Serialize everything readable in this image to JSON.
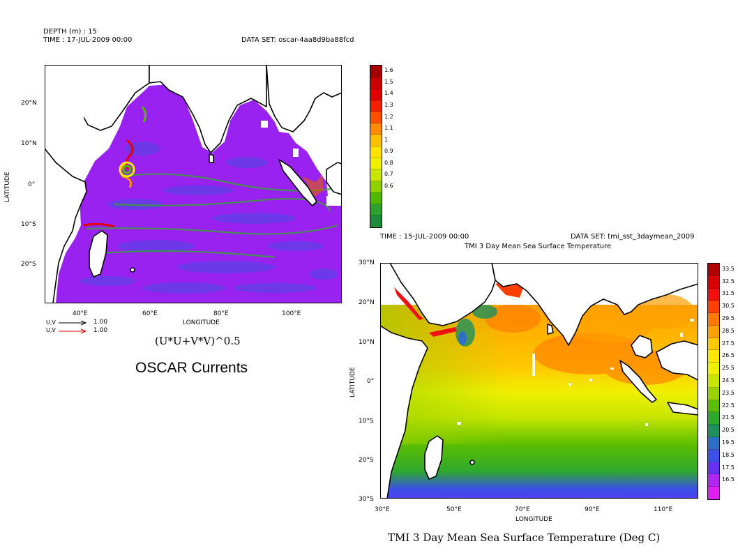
{
  "oscar": {
    "header": {
      "depth": "DEPTH (m) : 15",
      "time": "TIME : 17-JUL-2009 00:00",
      "dataset": "DATA SET: oscar-4aa8d9ba88fcd"
    },
    "lat_labels": [
      "20°N",
      "10°N",
      "0°",
      "10°S",
      "20°S"
    ],
    "lon_labels": [
      "40°E",
      "60°E",
      "80°E",
      "100°E"
    ],
    "ylabel": "LATITUDE",
    "xlabel": "LONGITUDE",
    "vector_legend": [
      {
        "label": "U,V",
        "value": "1.00",
        "color": "#000000"
      },
      {
        "label": "U,V",
        "value": "1.00",
        "color": "#e00000"
      }
    ],
    "formula": "(U*U+V*V)^0.5",
    "caption": "OSCAR Currents",
    "colorbar_labels": [
      "1.6",
      "1.5",
      "1.4",
      "1.3",
      "1.2",
      "1.1",
      "1",
      "0.9",
      "0.8",
      "0.7",
      "0.6"
    ],
    "colorbar_colors": [
      "#a00000",
      "#c80000",
      "#e00000",
      "#f02000",
      "#ff5000",
      "#ff8c00",
      "#ffc000",
      "#ffe400",
      "#f0f000",
      "#c8e600",
      "#90d200",
      "#50b800",
      "#2ea02e",
      "#1f8a3a"
    ]
  },
  "tmi": {
    "header": {
      "time": "TIME : 15-JUL-2009 00:00",
      "dataset": "DATA SET: tmi_sst_3daymean_2009",
      "title": "TMI 3 Day Mean Sea Surface Temperature"
    },
    "lat_labels": [
      "30°N",
      "20°N",
      "10°N",
      "0°",
      "10°S",
      "20°S",
      "30°S"
    ],
    "lon_labels": [
      "30°E",
      "50°E",
      "70°E",
      "90°E",
      "110°E"
    ],
    "ylabel": "LATITUDE",
    "xlabel": "LONGITUDE",
    "caption": "TMI 3 Day Mean Sea Surface Temperature (Deg C)",
    "colorbar_labels": [
      "33.5",
      "32.5",
      "31.5",
      "30.5",
      "29.5",
      "28.5",
      "27.5",
      "26.5",
      "25.5",
      "24.5",
      "23.5",
      "22.5",
      "21.5",
      "20.5",
      "19.5",
      "18.5",
      "17.5",
      "16.5"
    ],
    "colorbar_colors": [
      "#b00000",
      "#d80000",
      "#f01010",
      "#ff4000",
      "#ff7800",
      "#ffa000",
      "#ffc800",
      "#ffe600",
      "#f0f000",
      "#c8e600",
      "#9ad200",
      "#5cbe00",
      "#2ea82e",
      "#1e9060",
      "#2f6fc8",
      "#3a50e6",
      "#6a30f0",
      "#b028f0",
      "#e020f0"
    ]
  }
}
